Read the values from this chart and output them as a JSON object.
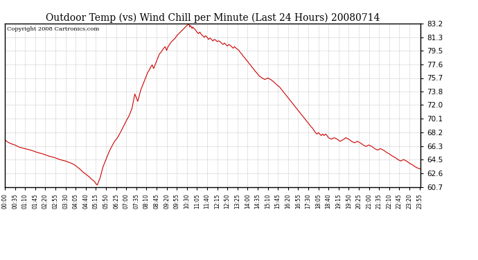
{
  "title": "Outdoor Temp (vs) Wind Chill per Minute (Last 24 Hours) 20080714",
  "copyright": "Copyright 2008 Cartronics.com",
  "line_color": "#cc0000",
  "background_color": "#ffffff",
  "grid_color": "#aaaaaa",
  "ylim_min": 60.7,
  "ylim_max": 83.2,
  "yticks": [
    60.7,
    62.6,
    64.5,
    66.3,
    68.2,
    70.1,
    72.0,
    73.8,
    75.7,
    77.6,
    79.5,
    81.3,
    83.2
  ],
  "xtick_labels": [
    "00:00",
    "00:35",
    "01:10",
    "01:45",
    "02:20",
    "02:55",
    "03:30",
    "04:05",
    "04:40",
    "05:15",
    "05:50",
    "06:25",
    "07:00",
    "07:35",
    "08:10",
    "08:45",
    "09:20",
    "09:55",
    "10:30",
    "11:05",
    "11:40",
    "12:15",
    "12:50",
    "13:25",
    "14:00",
    "14:35",
    "15:10",
    "15:45",
    "16:20",
    "16:55",
    "17:30",
    "18:05",
    "18:40",
    "19:15",
    "19:50",
    "20:25",
    "21:00",
    "21:35",
    "22:10",
    "22:45",
    "23:20",
    "23:55"
  ],
  "num_points": 1440,
  "raw_curve": [
    [
      0,
      67.2
    ],
    [
      10,
      66.9
    ],
    [
      20,
      66.7
    ],
    [
      35,
      66.5
    ],
    [
      50,
      66.2
    ],
    [
      70,
      66.0
    ],
    [
      90,
      65.8
    ],
    [
      110,
      65.5
    ],
    [
      130,
      65.3
    ],
    [
      150,
      65.0
    ],
    [
      170,
      64.8
    ],
    [
      190,
      64.5
    ],
    [
      210,
      64.3
    ],
    [
      230,
      64.0
    ],
    [
      240,
      63.8
    ],
    [
      250,
      63.5
    ],
    [
      260,
      63.2
    ],
    [
      270,
      62.8
    ],
    [
      280,
      62.5
    ],
    [
      290,
      62.2
    ],
    [
      300,
      61.8
    ],
    [
      310,
      61.5
    ],
    [
      315,
      61.2
    ],
    [
      320,
      61.0
    ],
    [
      325,
      61.5
    ],
    [
      330,
      62.0
    ],
    [
      335,
      62.8
    ],
    [
      340,
      63.5
    ],
    [
      350,
      64.5
    ],
    [
      360,
      65.5
    ],
    [
      370,
      66.3
    ],
    [
      380,
      67.0
    ],
    [
      390,
      67.5
    ],
    [
      400,
      68.2
    ],
    [
      410,
      69.0
    ],
    [
      420,
      69.8
    ],
    [
      430,
      70.5
    ],
    [
      435,
      71.0
    ],
    [
      440,
      71.5
    ],
    [
      445,
      72.5
    ],
    [
      450,
      73.5
    ],
    [
      455,
      73.0
    ],
    [
      460,
      72.5
    ],
    [
      465,
      73.2
    ],
    [
      470,
      74.0
    ],
    [
      475,
      74.5
    ],
    [
      480,
      75.0
    ],
    [
      485,
      75.5
    ],
    [
      490,
      76.0
    ],
    [
      495,
      76.5
    ],
    [
      500,
      76.8
    ],
    [
      505,
      77.2
    ],
    [
      510,
      77.5
    ],
    [
      515,
      77.0
    ],
    [
      520,
      77.5
    ],
    [
      525,
      78.0
    ],
    [
      530,
      78.5
    ],
    [
      535,
      79.0
    ],
    [
      540,
      79.2
    ],
    [
      545,
      79.5
    ],
    [
      550,
      79.8
    ],
    [
      555,
      80.0
    ],
    [
      560,
      79.5
    ],
    [
      565,
      80.0
    ],
    [
      570,
      80.3
    ],
    [
      575,
      80.6
    ],
    [
      580,
      80.8
    ],
    [
      585,
      81.0
    ],
    [
      590,
      81.2
    ],
    [
      595,
      81.5
    ],
    [
      600,
      81.7
    ],
    [
      605,
      81.9
    ],
    [
      610,
      82.1
    ],
    [
      615,
      82.3
    ],
    [
      620,
      82.5
    ],
    [
      625,
      82.7
    ],
    [
      630,
      82.9
    ],
    [
      635,
      83.1
    ],
    [
      638,
      83.0
    ],
    [
      640,
      82.7
    ],
    [
      642,
      82.9
    ],
    [
      645,
      82.8
    ],
    [
      648,
      82.5
    ],
    [
      650,
      82.7
    ],
    [
      655,
      82.5
    ],
    [
      660,
      82.3
    ],
    [
      665,
      82.0
    ],
    [
      670,
      81.8
    ],
    [
      675,
      82.0
    ],
    [
      680,
      81.7
    ],
    [
      685,
      81.5
    ],
    [
      690,
      81.3
    ],
    [
      695,
      81.5
    ],
    [
      700,
      81.3
    ],
    [
      705,
      81.0
    ],
    [
      710,
      81.2
    ],
    [
      715,
      81.0
    ],
    [
      720,
      80.8
    ],
    [
      725,
      81.0
    ],
    [
      730,
      80.9
    ],
    [
      735,
      80.7
    ],
    [
      740,
      80.8
    ],
    [
      745,
      80.7
    ],
    [
      750,
      80.5
    ],
    [
      755,
      80.3
    ],
    [
      760,
      80.5
    ],
    [
      765,
      80.3
    ],
    [
      770,
      80.1
    ],
    [
      775,
      80.3
    ],
    [
      780,
      80.2
    ],
    [
      785,
      80.0
    ],
    [
      790,
      79.8
    ],
    [
      795,
      80.0
    ],
    [
      800,
      79.8
    ],
    [
      810,
      79.5
    ],
    [
      815,
      79.2
    ],
    [
      820,
      79.0
    ],
    [
      825,
      78.7
    ],
    [
      830,
      78.5
    ],
    [
      835,
      78.2
    ],
    [
      840,
      78.0
    ],
    [
      845,
      77.7
    ],
    [
      850,
      77.5
    ],
    [
      855,
      77.2
    ],
    [
      860,
      77.0
    ],
    [
      865,
      76.7
    ],
    [
      870,
      76.5
    ],
    [
      880,
      76.0
    ],
    [
      890,
      75.7
    ],
    [
      900,
      75.5
    ],
    [
      910,
      75.7
    ],
    [
      920,
      75.5
    ],
    [
      930,
      75.2
    ],
    [
      940,
      74.8
    ],
    [
      950,
      74.5
    ],
    [
      960,
      74.0
    ],
    [
      970,
      73.5
    ],
    [
      980,
      73.0
    ],
    [
      990,
      72.5
    ],
    [
      1000,
      72.0
    ],
    [
      1010,
      71.5
    ],
    [
      1020,
      71.0
    ],
    [
      1030,
      70.5
    ],
    [
      1040,
      70.0
    ],
    [
      1050,
      69.5
    ],
    [
      1060,
      69.0
    ],
    [
      1065,
      68.8
    ],
    [
      1070,
      68.5
    ],
    [
      1075,
      68.2
    ],
    [
      1080,
      68.0
    ],
    [
      1085,
      68.2
    ],
    [
      1090,
      68.0
    ],
    [
      1095,
      67.8
    ],
    [
      1100,
      68.0
    ],
    [
      1105,
      67.8
    ],
    [
      1110,
      68.0
    ],
    [
      1115,
      67.8
    ],
    [
      1120,
      67.5
    ],
    [
      1130,
      67.3
    ],
    [
      1140,
      67.5
    ],
    [
      1150,
      67.3
    ],
    [
      1160,
      67.0
    ],
    [
      1170,
      67.2
    ],
    [
      1180,
      67.5
    ],
    [
      1190,
      67.3
    ],
    [
      1200,
      67.0
    ],
    [
      1210,
      66.8
    ],
    [
      1220,
      67.0
    ],
    [
      1230,
      66.8
    ],
    [
      1240,
      66.5
    ],
    [
      1250,
      66.3
    ],
    [
      1260,
      66.5
    ],
    [
      1270,
      66.3
    ],
    [
      1280,
      66.0
    ],
    [
      1290,
      65.8
    ],
    [
      1300,
      66.0
    ],
    [
      1310,
      65.8
    ],
    [
      1320,
      65.5
    ],
    [
      1330,
      65.3
    ],
    [
      1340,
      65.0
    ],
    [
      1350,
      64.8
    ],
    [
      1360,
      64.5
    ],
    [
      1370,
      64.3
    ],
    [
      1380,
      64.5
    ],
    [
      1390,
      64.3
    ],
    [
      1400,
      64.0
    ],
    [
      1410,
      63.8
    ],
    [
      1420,
      63.5
    ],
    [
      1430,
      63.3
    ],
    [
      1439,
      63.2
    ]
  ]
}
